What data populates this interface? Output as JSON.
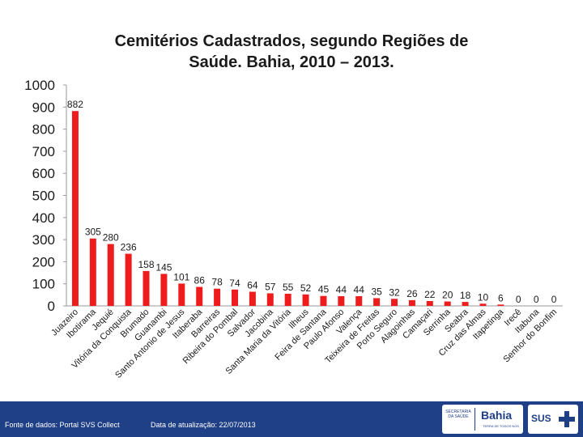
{
  "title_line1": "Cemitérios Cadastrados, segundo Regiões de",
  "title_line2": "Saúde. Bahia, 2010 – 2013.",
  "footer": {
    "source": "Fonte de dados: Portal SVS Collect",
    "date": "Data de atualização: 22/07/2013",
    "logo_bahia": "Bahia",
    "logo_bahia_small": "SECRETARIA DA SAÚDE",
    "logo_bahia_tagline": "TERRA DE TODOS NÓS",
    "logo_sus": "SUS"
  },
  "chart_data": {
    "type": "bar",
    "title": "Cemitérios Cadastrados, segundo Regiões de Saúde. Bahia, 2010 – 2013.",
    "xlabel": "",
    "ylabel": "",
    "ylim": [
      0,
      1000
    ],
    "yticks": [
      0,
      100,
      200,
      300,
      400,
      500,
      600,
      700,
      800,
      900,
      1000
    ],
    "bar_color": "#ee1c1c",
    "categories": [
      "Juazeiro",
      "Ibotirama",
      "Jequié",
      "Vitória da Conquista",
      "Brumado",
      "Guanambi",
      "Santo Antonio de Jesus",
      "Itaberaba",
      "Barreiras",
      "Ribeira do Pombal",
      "Salvador",
      "Jacobina",
      "Santa Maria da Vitória",
      "Ilheus",
      "Feira de Santana",
      "Paulo Afonso",
      "Valença",
      "Teixeira de Freitas",
      "Porto Seguro",
      "Alagoinhas",
      "Camaçari",
      "Serrinha",
      "Seabra",
      "Cruz das Almas",
      "Itapetinga",
      "Irecê",
      "Itabuna",
      "Senhor do Bonfim"
    ],
    "values": [
      882,
      305,
      280,
      236,
      158,
      145,
      101,
      86,
      78,
      74,
      64,
      57,
      55,
      52,
      45,
      44,
      44,
      35,
      32,
      26,
      22,
      20,
      18,
      10,
      6,
      0,
      0,
      0
    ],
    "grid": false
  }
}
